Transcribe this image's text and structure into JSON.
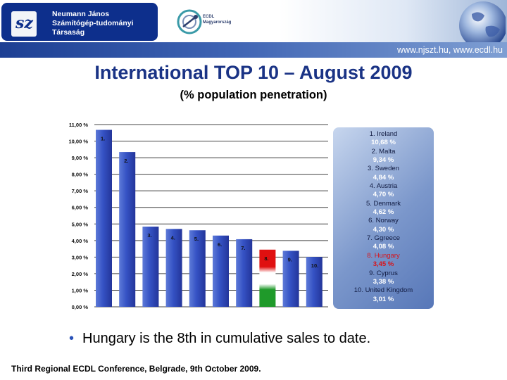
{
  "header": {
    "org_name_lines": [
      "Neumann János",
      "Számítógép-tudományi",
      "Társaság"
    ],
    "ecdl_lines": [
      "ECDL",
      "Magyarország"
    ],
    "url": "www.njszt.hu, www.ecdl.hu"
  },
  "slide": {
    "bullet": "Hungary is the 8th in cumulative sales to date.",
    "footer": "Third Regional ECDL Conference, Belgrade, 9th October 2009."
  },
  "colors": {
    "bar_blue": "#2f47b8",
    "highlight_red": "#e01010",
    "highlight_green": "#1f9a2a",
    "title_blue": "#1a3385"
  },
  "chart_data": {
    "type": "bar",
    "title": "International TOP 10 – August 2009",
    "subtitle": "(% population penetration)",
    "categories": [
      "1.",
      "2.",
      "3.",
      "4.",
      "5.",
      "6.",
      "7.",
      "8.",
      "9.",
      "10."
    ],
    "values": [
      10.68,
      9.34,
      4.84,
      4.7,
      4.62,
      4.3,
      4.08,
      3.45,
      3.38,
      3.01
    ],
    "highlight_index": 7,
    "y_ticks": [
      "0,00 %",
      "1,00 %",
      "2,00 %",
      "3,00 %",
      "4,00 %",
      "5,00 %",
      "6,00 %",
      "7,00 %",
      "8,00 %",
      "9,00 %",
      "10,00 %",
      "11,00 %"
    ],
    "ylim": [
      0,
      11
    ],
    "grid": true,
    "legend_placement": "right",
    "legend": [
      {
        "label": "1. Ireland",
        "value": "10,68 %"
      },
      {
        "label": "2. Malta",
        "value": "9,34 %"
      },
      {
        "label": "3. Sweden",
        "value": "4,84 %"
      },
      {
        "label": "4. Austria",
        "value": "4,70 %"
      },
      {
        "label": "5. Denmark",
        "value": "4,62 %"
      },
      {
        "label": "6. Norway",
        "value": "4,30 %"
      },
      {
        "label": "7. Ggreece",
        "value": "4,08 %"
      },
      {
        "label": "8. Hungary",
        "value": "3,45 %"
      },
      {
        "label": "9. Cyprus",
        "value": "3,38 %"
      },
      {
        "label": "10. United Kingdom",
        "value": "3,01 %"
      }
    ]
  }
}
